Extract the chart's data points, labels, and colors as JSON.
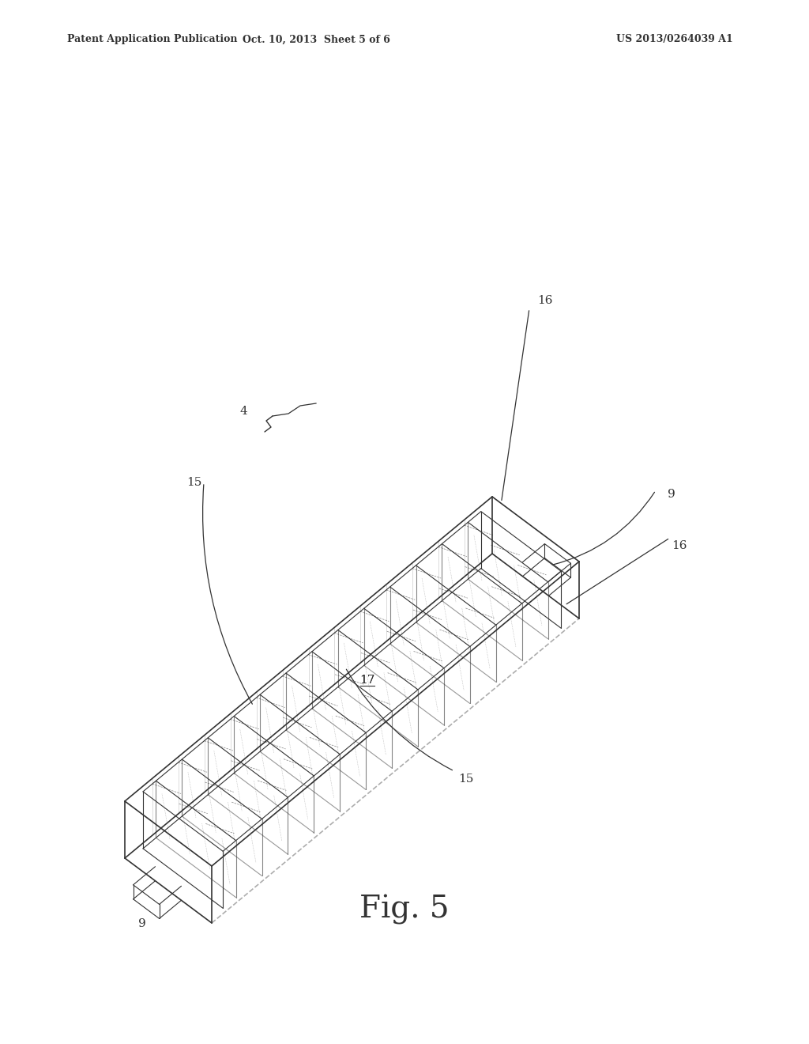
{
  "bg_color": "#ffffff",
  "line_color": "#333333",
  "header_left": "Patent Application Publication",
  "header_mid": "Oct. 10, 2013  Sheet 5 of 6",
  "header_right": "US 2013/0264039 A1",
  "fig_label": "Fig. 5",
  "label_4": "4",
  "label_9_top": "9",
  "label_9_bot": "9",
  "label_15_left": "15",
  "label_15_bot": "15",
  "label_16_top": "16",
  "label_16_right": "16",
  "label_17": "17"
}
